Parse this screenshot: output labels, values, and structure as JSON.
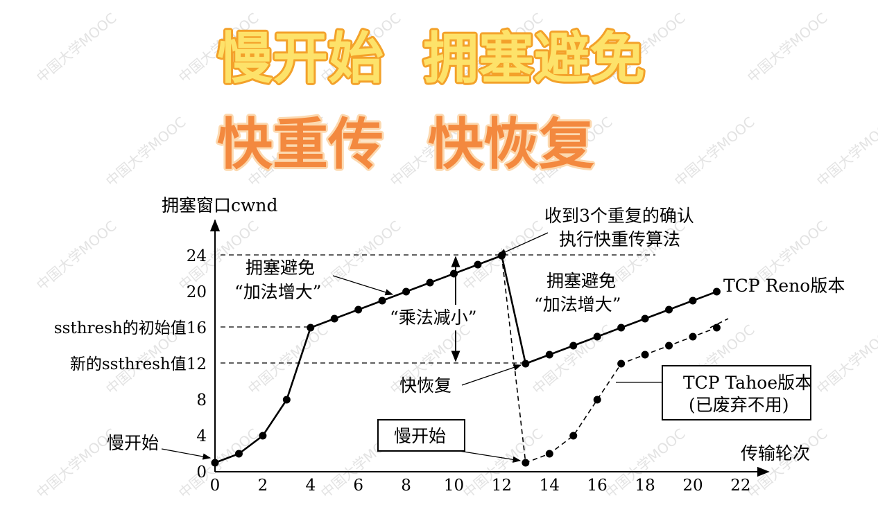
{
  "header": {
    "line1": {
      "part1": "慢开始",
      "part2": "拥塞避免"
    },
    "line2": {
      "part1": "快重传",
      "part2": "快恢复"
    }
  },
  "watermark": "中国大学MOOC",
  "colors": {
    "title1_fill": "#fde26a",
    "title1_stroke": "#f3a12a",
    "title2_fill": "#f3893f",
    "title2_stroke": "#fcd9b0"
  },
  "chart_data": {
    "type": "line",
    "xlabel": "传输轮次",
    "ylabel": "拥塞窗口cwnd",
    "xlim": [
      0,
      22
    ],
    "ylim": [
      0,
      24
    ],
    "x_ticks": [
      "0",
      "2",
      "4",
      "6",
      "8",
      "10",
      "12",
      "14",
      "16",
      "18",
      "20",
      "22"
    ],
    "y_ticks": [
      {
        "value": 0,
        "label": "0"
      },
      {
        "value": 4,
        "label": "4"
      },
      {
        "value": 8,
        "label": "8"
      },
      {
        "value": 12,
        "label": "新的ssthresh值12"
      },
      {
        "value": 16,
        "label": "ssthresh的初始值16"
      },
      {
        "value": 20,
        "label": "20"
      },
      {
        "value": 24,
        "label": "24"
      }
    ],
    "series": [
      {
        "name": "TCP Reno版本",
        "style": "solid",
        "points": [
          [
            0,
            1
          ],
          [
            1,
            2
          ],
          [
            2,
            4
          ],
          [
            3,
            8
          ],
          [
            4,
            16
          ],
          [
            5,
            17
          ],
          [
            6,
            18
          ],
          [
            7,
            19
          ],
          [
            8,
            20
          ],
          [
            9,
            21
          ],
          [
            10,
            22
          ],
          [
            11,
            23
          ],
          [
            12,
            24
          ],
          [
            13,
            12
          ],
          [
            14,
            13
          ],
          [
            15,
            14
          ],
          [
            16,
            15
          ],
          [
            17,
            16
          ],
          [
            18,
            17
          ],
          [
            19,
            18
          ],
          [
            20,
            19
          ],
          [
            21,
            20
          ]
        ]
      },
      {
        "name": "TCP Tahoe版本",
        "note": "(已废弃不用)",
        "style": "dashed",
        "points": [
          [
            12,
            24
          ],
          [
            13,
            1
          ],
          [
            14,
            2
          ],
          [
            15,
            4
          ],
          [
            16,
            8
          ],
          [
            17,
            12
          ],
          [
            18,
            13
          ],
          [
            19,
            14
          ],
          [
            20,
            15
          ],
          [
            21,
            16
          ]
        ]
      }
    ],
    "annotations": {
      "slow_start_1": "慢开始",
      "slow_start_2": "慢开始",
      "ca1_line1": "拥塞避免",
      "ca1_line2": "“加法增大”",
      "ca2_line1": "拥塞避免",
      "ca2_line2": "“加法增大”",
      "multiplicative_decrease": "“乘法减小”",
      "three_dup_acks_line1": "收到3个重复的确认",
      "three_dup_acks_line2": "执行快重传算法",
      "fast_recovery": "快恢复"
    }
  }
}
